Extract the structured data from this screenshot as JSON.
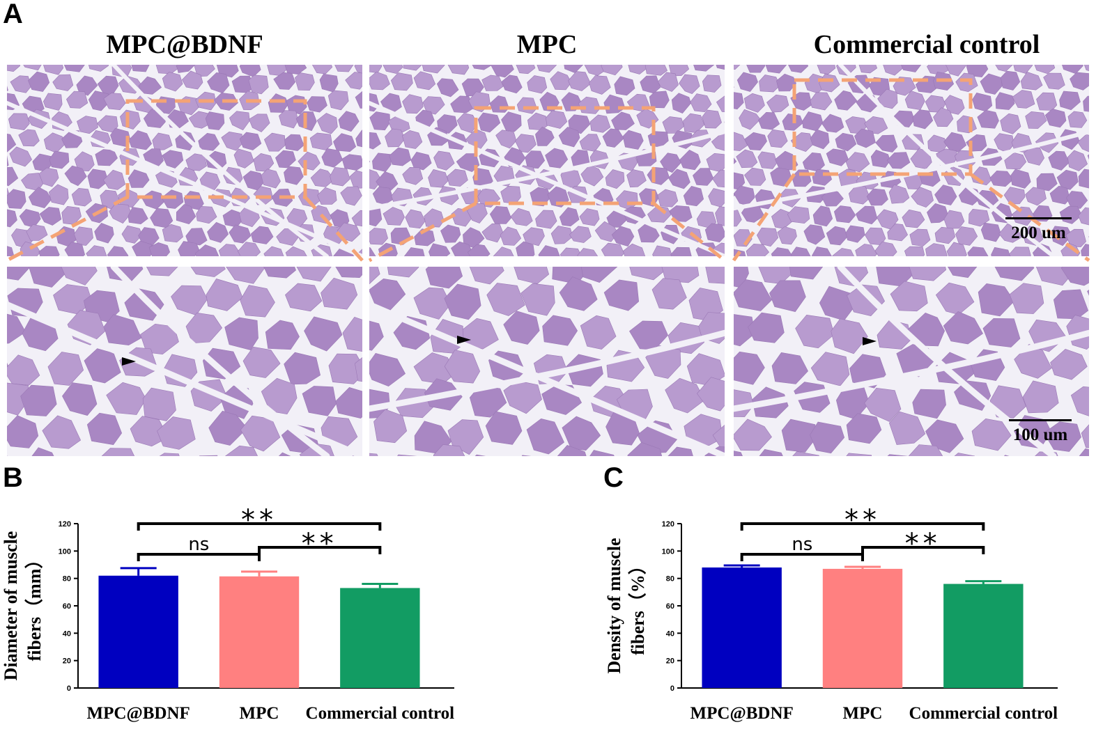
{
  "figure": {
    "panel_labels": {
      "a": "A",
      "b": "B",
      "c": "C"
    },
    "columns": [
      {
        "title": "MPC@BDNF"
      },
      {
        "title": "MPC"
      },
      {
        "title": "Commercial control"
      }
    ],
    "scale_bars": {
      "top": "200 um",
      "bottom": "100 um"
    },
    "colors": {
      "tissue": "#a987c3",
      "tissue_light": "#b89bcf",
      "membrane": "#f2f0f7",
      "zoom_box": "#f4a375"
    }
  },
  "chart_data": [
    {
      "type": "bar",
      "panel": "B",
      "categories": [
        "MPC@BDNF",
        "MPC",
        "Commercial control"
      ],
      "values": [
        82,
        81.5,
        73
      ],
      "errors": [
        5.5,
        3.5,
        3
      ],
      "colors": [
        "#0000c0",
        "#ff8080",
        "#129c63"
      ],
      "ylabel_lines": [
        "Diameter of muscle",
        "fibers（mm）"
      ],
      "ylim": [
        0,
        120
      ],
      "yticks": [
        "0",
        "20",
        "40",
        "60",
        "80",
        "100",
        "120"
      ],
      "significance": [
        {
          "from": 0,
          "to": 1,
          "label": "ns"
        },
        {
          "from": 1,
          "to": 2,
          "label": "**"
        },
        {
          "from": 0,
          "to": 2,
          "label": "**"
        }
      ]
    },
    {
      "type": "bar",
      "panel": "C",
      "categories": [
        "MPC@BDNF",
        "MPC",
        "Commercial control"
      ],
      "values": [
        88,
        87,
        76
      ],
      "errors": [
        1.5,
        1.5,
        2
      ],
      "colors": [
        "#0000c0",
        "#ff8080",
        "#129c63"
      ],
      "ylabel_lines": [
        "Density of muscle",
        "fibers（%）"
      ],
      "ylim": [
        0,
        120
      ],
      "yticks": [
        "0",
        "20",
        "40",
        "60",
        "80",
        "100",
        "120"
      ],
      "significance": [
        {
          "from": 0,
          "to": 1,
          "label": "ns"
        },
        {
          "from": 1,
          "to": 2,
          "label": "**"
        },
        {
          "from": 0,
          "to": 2,
          "label": "**"
        }
      ]
    }
  ]
}
